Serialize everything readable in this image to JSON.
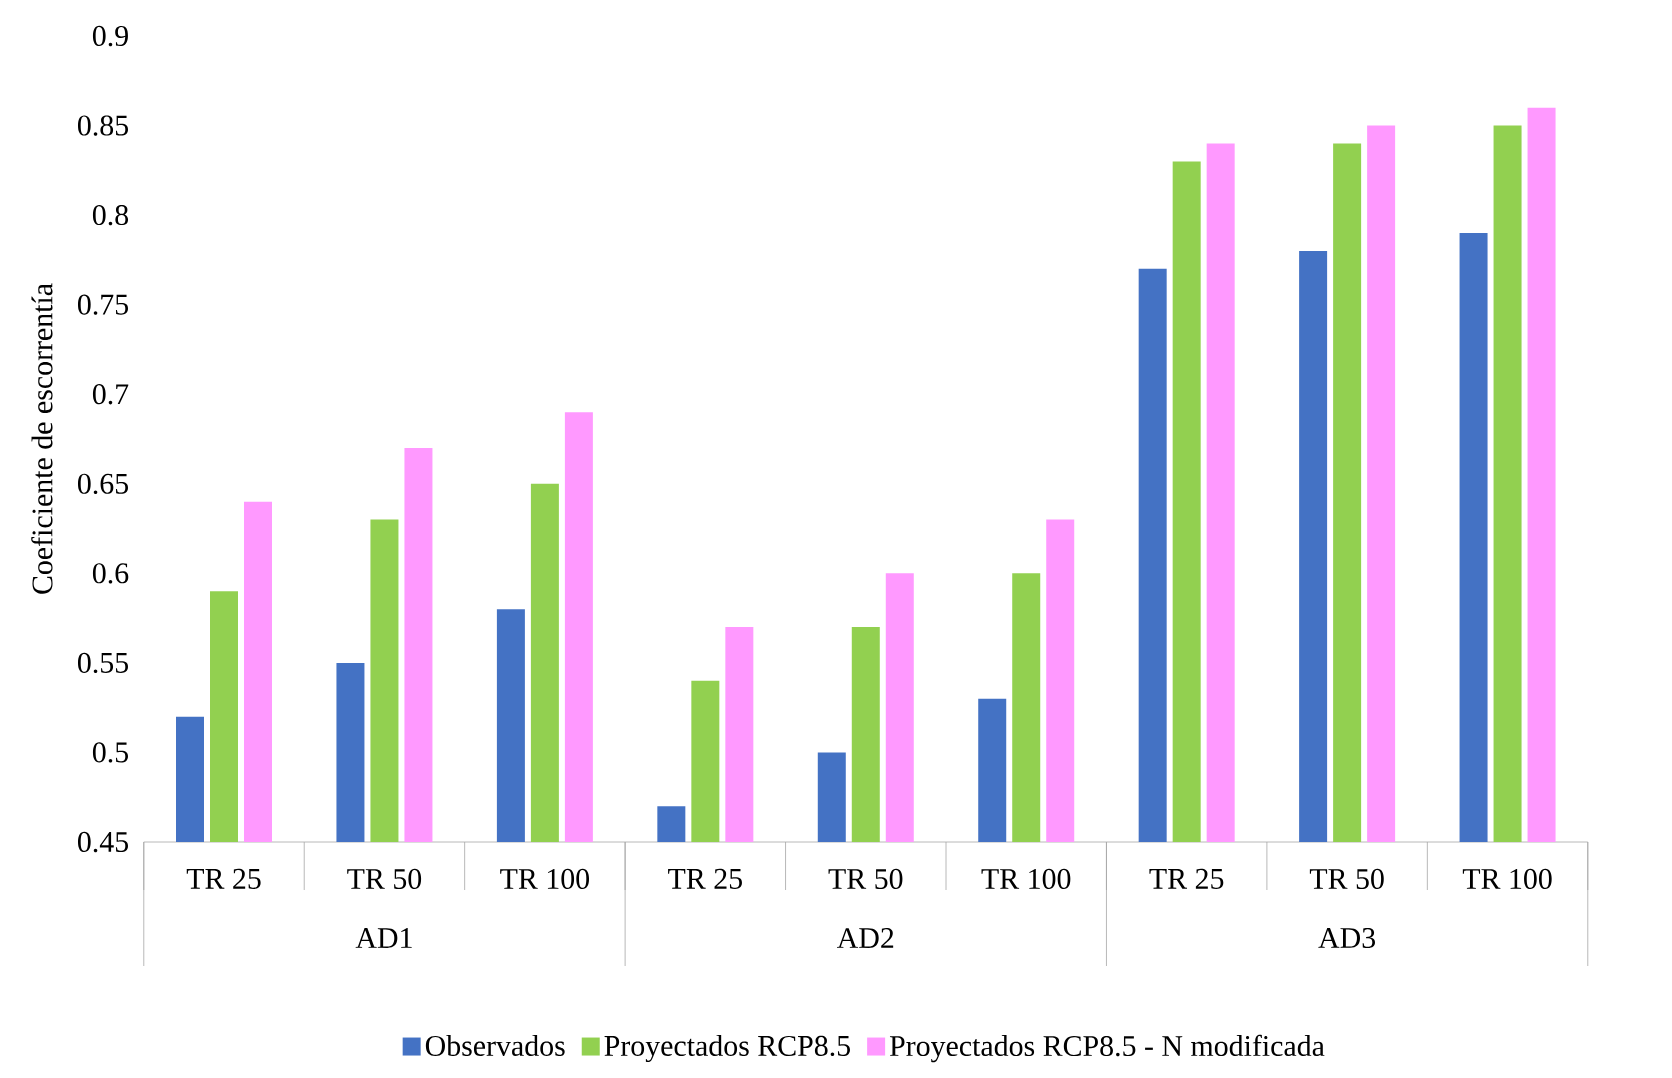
{
  "chart_data": {
    "type": "bar",
    "ylabel": "Coeficiente de escorrentía",
    "categories": [
      "TR 25",
      "TR 50",
      "TR 100",
      "TR 25",
      "TR 50",
      "TR 100",
      "TR 25",
      "TR 50",
      "TR 100"
    ],
    "annotations": [
      "AD1",
      "AD2",
      "AD3"
    ],
    "series": [
      {
        "name": "Observados",
        "color": "#4472c4",
        "values": [
          0.52,
          0.55,
          0.58,
          0.47,
          0.5,
          0.53,
          0.77,
          0.78,
          0.79
        ]
      },
      {
        "name": "Proyectados RCP8.5",
        "color": "#92d050",
        "values": [
          0.59,
          0.63,
          0.65,
          0.54,
          0.57,
          0.6,
          0.83,
          0.84,
          0.85
        ]
      },
      {
        "name": "Proyectados RCP8.5 - N modificada",
        "color": "#ff99ff",
        "values": [
          0.64,
          0.67,
          0.69,
          0.57,
          0.6,
          0.63,
          0.84,
          0.85,
          0.86
        ]
      }
    ],
    "ylim": [
      0.45,
      0.9
    ],
    "yticks": [
      0.45,
      0.5,
      0.55,
      0.6,
      0.65,
      0.7,
      0.75,
      0.8,
      0.85,
      0.9
    ],
    "grid": false,
    "legend": "bottom"
  }
}
